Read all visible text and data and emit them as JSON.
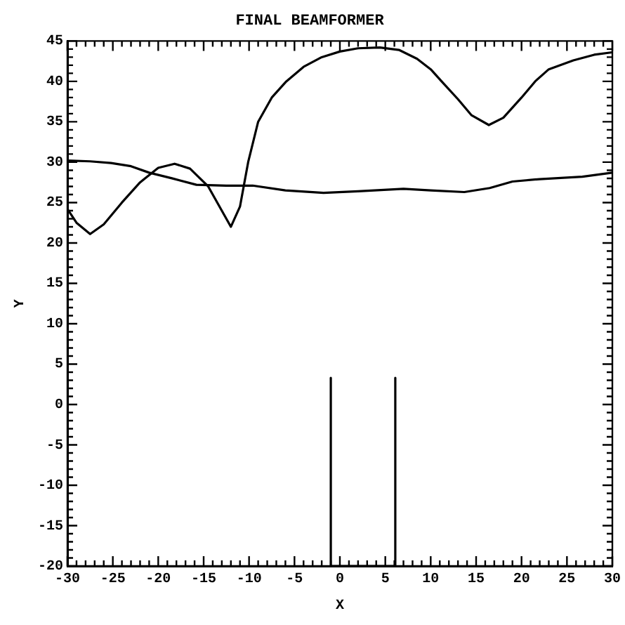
{
  "chart_data": {
    "type": "line",
    "title": "FINAL BEAMFORMER",
    "xlabel": "X",
    "ylabel": "Y",
    "marker": "none",
    "line_style": "solid",
    "grid": false,
    "legend": false,
    "xlim": [
      -30,
      30
    ],
    "ylim": [
      -20,
      45
    ],
    "xticks": [
      -30,
      {
        "value": -29,
        "label": null
      },
      {
        "value": -28,
        "label": null
      },
      {
        "value": -27,
        "label": null
      },
      {
        "value": -26,
        "label": null
      },
      -25,
      {
        "value": -24,
        "label": null
      },
      {
        "value": -23,
        "label": null
      },
      {
        "value": -22,
        "label": null
      },
      {
        "value": -21,
        "label": null
      },
      -20,
      {
        "value": -19,
        "label": null
      },
      {
        "value": -18,
        "label": null
      },
      {
        "value": -17,
        "label": null
      },
      {
        "value": -16,
        "label": null
      },
      -15,
      {
        "value": -14,
        "label": null
      },
      {
        "value": -13,
        "label": null
      },
      {
        "value": -12,
        "label": null
      },
      {
        "value": -11,
        "label": null
      },
      -10,
      {
        "value": -9,
        "label": null
      },
      {
        "value": -8,
        "label": null
      },
      {
        "value": -7,
        "label": null
      },
      {
        "value": -6,
        "label": null
      },
      -5,
      {
        "value": -4,
        "label": null
      },
      {
        "value": -3,
        "label": null
      },
      {
        "value": -2,
        "label": null
      },
      {
        "value": -1,
        "label": null
      },
      0,
      {
        "value": 1,
        "label": null
      },
      {
        "value": 2,
        "label": null
      },
      {
        "value": 3,
        "label": null
      },
      {
        "value": 4,
        "label": null
      },
      5,
      {
        "value": 6,
        "label": null
      },
      {
        "value": 7,
        "label": null
      },
      {
        "value": 8,
        "label": null
      },
      {
        "value": 9,
        "label": null
      },
      10,
      {
        "value": 11,
        "label": null
      },
      {
        "value": 12,
        "label": null
      },
      {
        "value": 13,
        "label": null
      },
      {
        "value": 14,
        "label": null
      },
      15,
      {
        "value": 16,
        "label": null
      },
      {
        "value": 17,
        "label": null
      },
      {
        "value": 18,
        "label": null
      },
      {
        "value": 19,
        "label": null
      },
      20,
      {
        "value": 21,
        "label": null
      },
      {
        "value": 22,
        "label": null
      },
      {
        "value": 23,
        "label": null
      },
      {
        "value": 24,
        "label": null
      },
      25,
      {
        "value": 26,
        "label": null
      },
      {
        "value": 27,
        "label": null
      },
      {
        "value": 28,
        "label": null
      },
      {
        "value": 29,
        "label": null
      },
      30
    ],
    "yticks": [
      -20,
      {
        "value": -19,
        "label": null
      },
      {
        "value": -18,
        "label": null
      },
      {
        "value": -17,
        "label": null
      },
      {
        "value": -16,
        "label": null
      },
      -15,
      {
        "value": -14,
        "label": null
      },
      {
        "value": -13,
        "label": null
      },
      {
        "value": -12,
        "label": null
      },
      {
        "value": -11,
        "label": null
      },
      -10,
      {
        "value": -9,
        "label": null
      },
      {
        "value": -8,
        "label": null
      },
      {
        "value": -7,
        "label": null
      },
      {
        "value": -6,
        "label": null
      },
      -5,
      {
        "value": -4,
        "label": null
      },
      {
        "value": -3,
        "label": null
      },
      {
        "value": -2,
        "label": null
      },
      {
        "value": -1,
        "label": null
      },
      0,
      {
        "value": 1,
        "label": null
      },
      {
        "value": 2,
        "label": null
      },
      {
        "value": 3,
        "label": null
      },
      {
        "value": 4,
        "label": null
      },
      5,
      {
        "value": 6,
        "label": null
      },
      {
        "value": 7,
        "label": null
      },
      {
        "value": 8,
        "label": null
      },
      {
        "value": 9,
        "label": null
      },
      10,
      {
        "value": 11,
        "label": null
      },
      {
        "value": 12,
        "label": null
      },
      {
        "value": 13,
        "label": null
      },
      {
        "value": 14,
        "label": null
      },
      15,
      {
        "value": 16,
        "label": null
      },
      {
        "value": 17,
        "label": null
      },
      {
        "value": 18,
        "label": null
      },
      {
        "value": 19,
        "label": null
      },
      20,
      {
        "value": 21,
        "label": null
      },
      {
        "value": 22,
        "label": null
      },
      {
        "value": 23,
        "label": null
      },
      {
        "value": 24,
        "label": null
      },
      25,
      {
        "value": 26,
        "label": null
      },
      {
        "value": 27,
        "label": null
      },
      {
        "value": 28,
        "label": null
      },
      {
        "value": 29,
        "label": null
      },
      30,
      {
        "value": 31,
        "label": null
      },
      {
        "value": 32,
        "label": null
      },
      {
        "value": 33,
        "label": null
      },
      {
        "value": 34,
        "label": null
      },
      35,
      {
        "value": 36,
        "label": null
      },
      {
        "value": 37,
        "label": null
      },
      {
        "value": 38,
        "label": null
      },
      {
        "value": 39,
        "label": null
      },
      40,
      {
        "value": 41,
        "label": null
      },
      {
        "value": 42,
        "label": null
      },
      {
        "value": 43,
        "label": null
      },
      {
        "value": 44,
        "label": null
      },
      45
    ],
    "series": [
      {
        "color": "#000000",
        "x": [
          -30,
          -29,
          -27.5,
          -26,
          -24,
          -22,
          -20,
          -18.2,
          -16.5,
          -14.5,
          -13,
          -12,
          -11,
          -10.1,
          -9,
          -7.5,
          -5.9,
          -4,
          -2,
          0,
          2,
          4.4,
          6.5,
          8.5,
          10,
          11.2,
          13,
          14.5,
          16.4,
          18,
          20,
          21.5,
          23,
          25.7,
          28,
          30
        ],
        "values": [
          24.2,
          22.5,
          21.1,
          22.3,
          25,
          27.5,
          29.3,
          29.8,
          29.2,
          27,
          24,
          22,
          24.5,
          30,
          35,
          38,
          40,
          41.8,
          43,
          43.7,
          44.1,
          44.2,
          43.9,
          42.8,
          41.5,
          40,
          37.8,
          35.8,
          34.6,
          35.5,
          38,
          40,
          41.5,
          42.6,
          43.3,
          43.6
        ]
      },
      {
        "color": "#000000",
        "x": [
          -30,
          -27.5,
          -25.2,
          -23,
          -21,
          -18.5,
          -15.8,
          -12.5,
          -9.6,
          -6,
          -1.8,
          2,
          7,
          10,
          13.7,
          16.5,
          19,
          22,
          26.7,
          30
        ],
        "values": [
          30.2,
          30.1,
          29.9,
          29.5,
          28.7,
          28,
          27.2,
          27.1,
          27.1,
          26.5,
          26.2,
          26.4,
          26.7,
          26.5,
          26.3,
          26.8,
          27.6,
          27.9,
          28.2,
          28.7
        ]
      },
      {
        "color": "#000000",
        "x": [
          -1,
          -1,
          -1,
          6.1,
          6.1,
          6.1
        ],
        "values": [
          -20,
          3.3,
          -20,
          -20,
          3.3,
          -20
        ]
      }
    ]
  }
}
